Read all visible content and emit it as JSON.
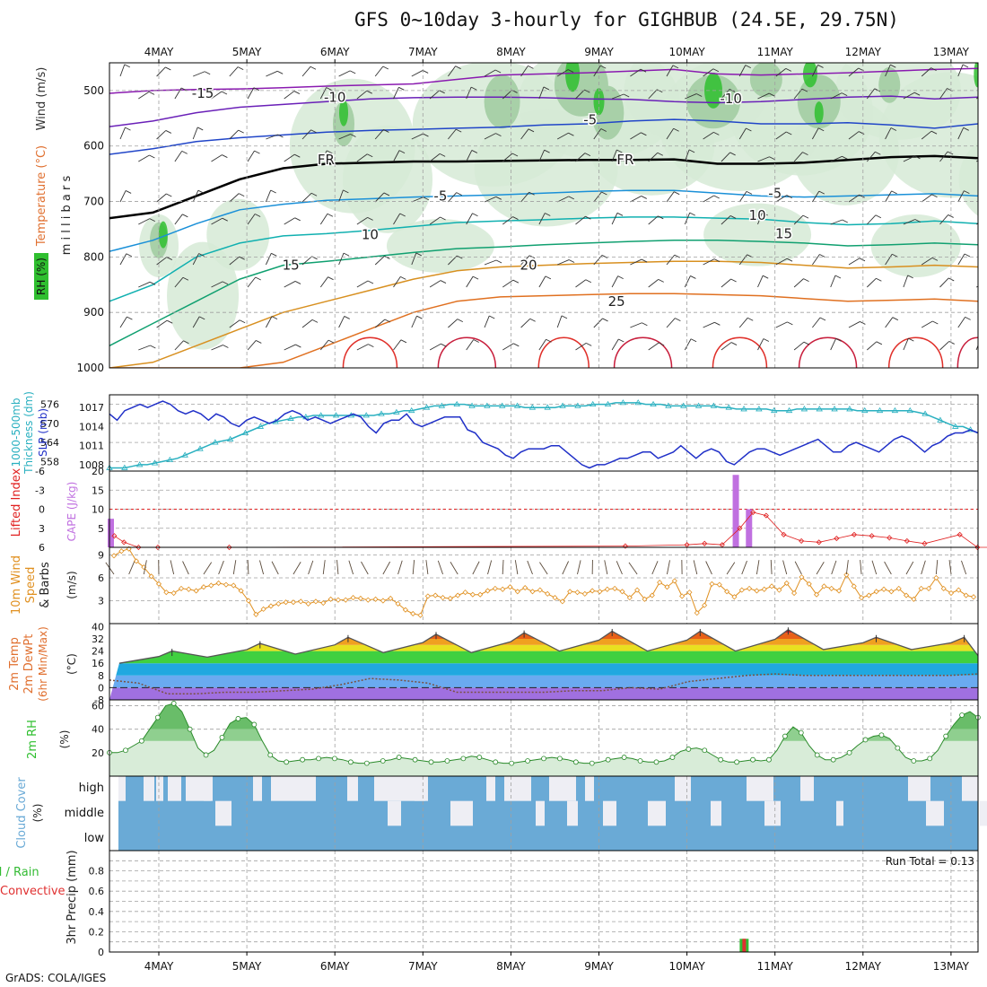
{
  "title": "GFS 0~10day 3-hourly for GIGHBUB (24.5E, 29.75N)",
  "credit": "GrADS: COLA/IGES",
  "colors": {
    "frame": "#000000",
    "grid": "#a0a0a0",
    "rh_green": "#2fbf2f",
    "temp_label": "#e07030",
    "wind_label": "#333333",
    "thickness": "#2ab0c0",
    "slp": "#2030c8",
    "lifted_index": "#e02020",
    "cape": "#c070e0",
    "wind10": "#e09020",
    "cloud": "#6aaad6",
    "precip_total": "#33bb33",
    "precip_conv": "#e03030"
  },
  "chart_data": [
    {
      "panel": "cross_section",
      "type": "heatmap",
      "ylabel_parts": [
        "RH (%)",
        "Temperature (°C)",
        "Wind (m/s)"
      ],
      "yunit": "millibars",
      "ylim": [
        1000,
        450
      ],
      "y_ticks": [
        "500",
        "600",
        "700",
        "800",
        "900",
        "1000"
      ],
      "x_ticks": [
        "4MAY",
        "5MAY",
        "6MAY",
        "7MAY",
        "8MAY",
        "9MAY",
        "10MAY",
        "11MAY",
        "12MAY",
        "13MAY"
      ],
      "isotherm_labels": [
        {
          "text": "-15",
          "p": 505,
          "day": 0.5
        },
        {
          "text": "-10",
          "p": 512,
          "day": 2.0
        },
        {
          "text": "-10",
          "p": 515,
          "day": 6.5
        },
        {
          "text": "-5",
          "p": 553,
          "day": 4.9
        },
        {
          "text": "FR",
          "p": 625,
          "day": 1.9
        },
        {
          "text": "FR",
          "p": 625,
          "day": 5.3
        },
        {
          "text": "-5",
          "p": 690,
          "day": 3.2
        },
        {
          "text": "-5",
          "p": 685,
          "day": 7.0
        },
        {
          "text": "10",
          "p": 760,
          "day": 2.4
        },
        {
          "text": "10",
          "p": 725,
          "day": 6.8
        },
        {
          "text": "15",
          "p": 758,
          "day": 7.1
        },
        {
          "text": "15",
          "p": 815,
          "day": 1.5
        },
        {
          "text": "20",
          "p": 815,
          "day": 4.2
        },
        {
          "text": "25",
          "p": 880,
          "day": 5.2
        }
      ],
      "isotherms": [
        {
          "name": "-15",
          "color": "#8a1ab0",
          "p": [
            505,
            500,
            498,
            497,
            495,
            492,
            490,
            488,
            480,
            472,
            470,
            468,
            465,
            462,
            470,
            472,
            470,
            468,
            465,
            462,
            460
          ]
        },
        {
          "name": "-10",
          "color": "#6a20b8",
          "p": [
            565,
            555,
            540,
            530,
            525,
            520,
            515,
            513,
            512,
            512,
            513,
            515,
            516,
            520,
            522,
            520,
            516,
            512,
            510,
            515,
            512
          ]
        },
        {
          "name": "-5",
          "color": "#2045c8",
          "p": [
            615,
            605,
            592,
            585,
            580,
            575,
            572,
            570,
            568,
            566,
            562,
            560,
            555,
            552,
            555,
            560,
            560,
            558,
            562,
            568,
            560
          ]
        },
        {
          "name": "FR",
          "color": "#000000",
          "p": [
            730,
            720,
            690,
            660,
            640,
            632,
            630,
            628,
            628,
            627,
            626,
            625,
            625,
            624,
            632,
            632,
            630,
            625,
            620,
            618,
            622
          ]
        },
        {
          "name": "5",
          "color": "#1a90d8",
          "p": [
            790,
            770,
            740,
            715,
            705,
            698,
            695,
            692,
            690,
            688,
            685,
            682,
            680,
            680,
            685,
            690,
            692,
            690,
            688,
            686,
            690
          ]
        },
        {
          "name": "10",
          "color": "#10b0b0",
          "p": [
            880,
            850,
            800,
            775,
            762,
            758,
            752,
            745,
            738,
            735,
            733,
            730,
            728,
            728,
            730,
            732,
            738,
            742,
            740,
            735,
            740
          ]
        },
        {
          "name": "15",
          "color": "#10a070",
          "p": [
            960,
            920,
            880,
            840,
            815,
            808,
            800,
            792,
            785,
            782,
            778,
            775,
            772,
            770,
            770,
            772,
            775,
            780,
            778,
            775,
            778
          ]
        },
        {
          "name": "20",
          "color": "#d89020",
          "p": [
            1000,
            990,
            960,
            930,
            900,
            880,
            860,
            840,
            825,
            818,
            815,
            812,
            810,
            808,
            808,
            810,
            815,
            820,
            818,
            815,
            818
          ]
        },
        {
          "name": "25",
          "color": "#e07020",
          "p": [
            1000,
            1000,
            1000,
            1000,
            990,
            960,
            930,
            900,
            880,
            872,
            870,
            868,
            866,
            866,
            868,
            870,
            875,
            880,
            878,
            876,
            880
          ]
        }
      ]
    },
    {
      "panel": "thickness_slp",
      "type": "line",
      "ylabel_left": "1000-500mb Thickness (dm)",
      "ylabel_right": "SLP (mb)",
      "left_ticks": [
        "576",
        "570",
        "564",
        "558"
      ],
      "right_ticks": [
        "1017",
        "1014",
        "1011",
        "1008"
      ],
      "left_range": [
        555,
        579
      ],
      "right_range": [
        1007,
        1019
      ],
      "series": [
        {
          "name": "thickness",
          "values": [
            556,
            556,
            556,
            556.5,
            557,
            557,
            557.5,
            558,
            558.5,
            559,
            560,
            561,
            562,
            563,
            564,
            564.5,
            565,
            566,
            567,
            568,
            569,
            570,
            570.5,
            571,
            571.5,
            572,
            572,
            572.5,
            572.5,
            572.5,
            572.5,
            572.5,
            572.5,
            572.5,
            572.5,
            572.5,
            573,
            573,
            573.5,
            574,
            574,
            574.5,
            575,
            575.5,
            575.5,
            576,
            576,
            576,
            575.5,
            575.5,
            575.5,
            575.5,
            575.5,
            575.5,
            575.5,
            575,
            575,
            575,
            575,
            575,
            575.5,
            575.5,
            575.5,
            575.5,
            576,
            576,
            576,
            576.5,
            576.5,
            576.5,
            576.5,
            576,
            576,
            576,
            575.5,
            575.5,
            575.5,
            575.5,
            575.5,
            575.5,
            575.5,
            575,
            575,
            574.5,
            574.5,
            574.5,
            574.5,
            574.5,
            574,
            574,
            574,
            574.5,
            574.5,
            574.5,
            574.5,
            574.5,
            574.5,
            574.5,
            574.5,
            574,
            574,
            574,
            574,
            574,
            574,
            574,
            574,
            573.5,
            573,
            572,
            571,
            570,
            569,
            569,
            568,
            567
          ]
        },
        {
          "name": "SLP",
          "values": [
            1016,
            1015,
            1016.5,
            1017,
            1017.5,
            1017,
            1017.5,
            1018,
            1017.5,
            1016.5,
            1016,
            1016.5,
            1016,
            1015,
            1016,
            1015.5,
            1014.5,
            1014,
            1015,
            1015.5,
            1015,
            1014.5,
            1015,
            1016,
            1016.5,
            1016,
            1015,
            1015.5,
            1015,
            1014.5,
            1015,
            1015.5,
            1016,
            1015.5,
            1014,
            1013,
            1014.5,
            1015,
            1015,
            1016,
            1014.5,
            1014,
            1014.5,
            1015,
            1015.5,
            1015.5,
            1015.5,
            1013.5,
            1013,
            1011.5,
            1011,
            1010.5,
            1009.5,
            1009,
            1010,
            1010.5,
            1010.5,
            1010.5,
            1011,
            1011,
            1010,
            1009,
            1008,
            1007.5,
            1008,
            1008,
            1008.5,
            1009,
            1009,
            1009.5,
            1010,
            1010,
            1009,
            1009.5,
            1010,
            1011,
            1010,
            1009,
            1010,
            1010.5,
            1010,
            1008.5,
            1008,
            1009,
            1010,
            1010.5,
            1010.5,
            1010,
            1009.5,
            1010,
            1010.5,
            1011,
            1011.5,
            1012,
            1011,
            1010,
            1010,
            1011,
            1011.5,
            1011,
            1010.5,
            1010,
            1011,
            1012,
            1012.5,
            1012,
            1011,
            1010,
            1011,
            1011.5,
            1012.5,
            1013,
            1013,
            1013.5,
            1013
          ]
        }
      ]
    },
    {
      "panel": "cape_li",
      "type": "bar",
      "ylabel_left": "Lifted Index",
      "ylabel_right": "CAPE (J/kg)",
      "li_ticks": [
        "-6",
        "-3",
        "0",
        "3",
        "6"
      ],
      "li_range": [
        -6,
        6
      ],
      "cape_ticks": [
        "20",
        "15",
        "10",
        "5"
      ],
      "cape_range": [
        0,
        20
      ],
      "cape_bars": [
        {
          "x": 0.05,
          "value": 7.5
        },
        {
          "x": 0.12,
          "value": 1.2
        },
        {
          "x": 7.05,
          "value": 19
        },
        {
          "x": 7.2,
          "value": 10
        }
      ],
      "li_points": [
        {
          "x": 0.1,
          "value": 4.2
        },
        {
          "x": 0.3,
          "value": 5.2
        },
        {
          "x": 0.6,
          "value": 6
        },
        {
          "x": 1.0,
          "value": 6
        },
        {
          "x": 1.3,
          "value": 6
        },
        {
          "x": 5.8,
          "value": 5.8
        },
        {
          "x": 6.5,
          "value": 5.6
        },
        {
          "x": 6.7,
          "value": 5.4
        },
        {
          "x": 6.9,
          "value": 5.6
        },
        {
          "x": 7.1,
          "value": 3
        },
        {
          "x": 7.25,
          "value": 0.5
        },
        {
          "x": 7.4,
          "value": 1
        },
        {
          "x": 7.6,
          "value": 4
        },
        {
          "x": 7.8,
          "value": 5
        },
        {
          "x": 8.0,
          "value": 5.2
        },
        {
          "x": 8.2,
          "value": 4.6
        },
        {
          "x": 8.4,
          "value": 4
        },
        {
          "x": 8.6,
          "value": 4.2
        },
        {
          "x": 8.8,
          "value": 4.5
        },
        {
          "x": 9.0,
          "value": 5
        },
        {
          "x": 9.2,
          "value": 5.4
        },
        {
          "x": 9.6,
          "value": 4
        },
        {
          "x": 9.8,
          "value": 6
        },
        {
          "x": 10.0,
          "value": 6
        }
      ]
    },
    {
      "panel": "wind10m",
      "type": "line",
      "ylabel": "10m Wind Speed & Barbs (m/s)",
      "ticks": [
        "9",
        "6",
        "3"
      ],
      "ylim": [
        0,
        10
      ],
      "values": [
        8.9,
        9.5,
        9.8,
        8.2,
        7.4,
        6.2,
        5.2,
        4.1,
        4.0,
        4.6,
        4.5,
        4.3,
        4.8,
        5.0,
        5.3,
        5.1,
        5.0,
        4.3,
        3.0,
        1.2,
        1.9,
        2.3,
        2.6,
        2.8,
        2.8,
        2.9,
        2.6,
        2.9,
        2.7,
        3.2,
        3.1,
        3.1,
        3.4,
        3.3,
        3.1,
        3.2,
        3.0,
        3.3,
        2.6,
        1.8,
        1.3,
        1.1,
        3.6,
        3.7,
        3.4,
        3.3,
        3.7,
        4.1,
        3.8,
        3.8,
        4.3,
        4.6,
        4.5,
        4.8,
        4.2,
        4.7,
        4.2,
        4.4,
        3.9,
        3.4,
        2.9,
        4.2,
        4.1,
        3.9,
        4.3,
        4.2,
        4.5,
        4.6,
        4.2,
        3.4,
        4.4,
        3.2,
        3.7,
        5.4,
        4.8,
        5.6,
        3.6,
        4.1,
        1.4,
        2.4,
        5.2,
        5.1,
        4.2,
        3.5,
        4.4,
        4.6,
        4.3,
        4.5,
        4.9,
        4.4,
        5.3,
        4.0,
        6.1,
        5.2,
        3.8,
        4.9,
        4.6,
        4.3,
        6.4,
        4.9,
        3.4,
        3.7,
        4.2,
        4.5,
        4.2,
        4.6,
        3.7,
        3.2,
        4.6,
        4.6,
        6.0,
        4.6,
        4.0,
        4.4,
        3.7,
        3.5
      ]
    },
    {
      "panel": "temp_dewpoint",
      "type": "area",
      "ylabel": "2m Temp 2m DewPt (6hr Min/Max) (°C)",
      "ticks": [
        "40",
        "32",
        "24",
        "16",
        "8",
        "0",
        "-8"
      ],
      "ylim": [
        -8,
        42
      ],
      "temp_day_max": [
        24,
        29,
        33,
        35,
        36,
        37,
        37,
        38,
        33,
        33
      ],
      "temp_night_min": [
        16,
        20,
        22,
        23,
        23,
        24,
        24,
        24,
        25,
        25
      ],
      "dewpoint": [
        5,
        3,
        -4,
        -4,
        -3,
        -3,
        -2,
        -1,
        2,
        6,
        5,
        3,
        -3,
        -3,
        -3,
        -3,
        -2,
        -2,
        0,
        -1,
        4,
        6,
        8,
        9,
        8,
        8,
        8,
        8,
        8,
        8,
        9
      ]
    },
    {
      "panel": "rh2m",
      "type": "area",
      "ylabel": "2m RH (%)",
      "ticks": [
        "60",
        "40",
        "20"
      ],
      "ylim": [
        0,
        65
      ],
      "values": [
        20,
        20,
        22,
        26,
        30,
        40,
        50,
        60,
        62,
        55,
        40,
        24,
        18,
        22,
        33,
        45,
        49,
        50,
        44,
        30,
        18,
        13,
        12,
        13,
        14,
        14,
        15,
        16,
        15,
        14,
        12,
        11,
        11,
        12,
        13,
        14,
        16,
        15,
        14,
        13,
        12,
        12,
        13,
        14,
        15,
        17,
        16,
        14,
        12,
        11,
        11,
        12,
        13,
        14,
        15,
        16,
        15,
        14,
        12,
        11,
        11,
        12,
        14,
        15,
        16,
        15,
        13,
        12,
        12,
        13,
        16,
        21,
        23,
        24,
        22,
        18,
        14,
        12,
        12,
        13,
        14,
        13,
        14,
        22,
        34,
        42,
        37,
        26,
        18,
        14,
        14,
        16,
        20,
        26,
        31,
        34,
        35,
        32,
        24,
        16,
        13,
        13,
        15,
        22,
        34,
        44,
        52,
        55,
        50
      ]
    },
    {
      "panel": "cloud_cover",
      "type": "heatmap",
      "ylabel": "Cloud Cover (%)",
      "levels": [
        "high",
        "middle",
        "low"
      ]
    },
    {
      "panel": "precip",
      "type": "bar",
      "ylabel": "3hr Precip (mm)",
      "ylabel_extra": [
        "Total / Rain",
        "Convective"
      ],
      "ticks": [
        "0.8",
        "0.6",
        "0.4",
        "0.2",
        "0"
      ],
      "ylim": [
        0,
        1.0
      ],
      "run_total_label": "Run Total = 0.13",
      "bars": [
        {
          "x": 7.05,
          "total": 0.13,
          "convective": 0.13
        }
      ]
    }
  ]
}
